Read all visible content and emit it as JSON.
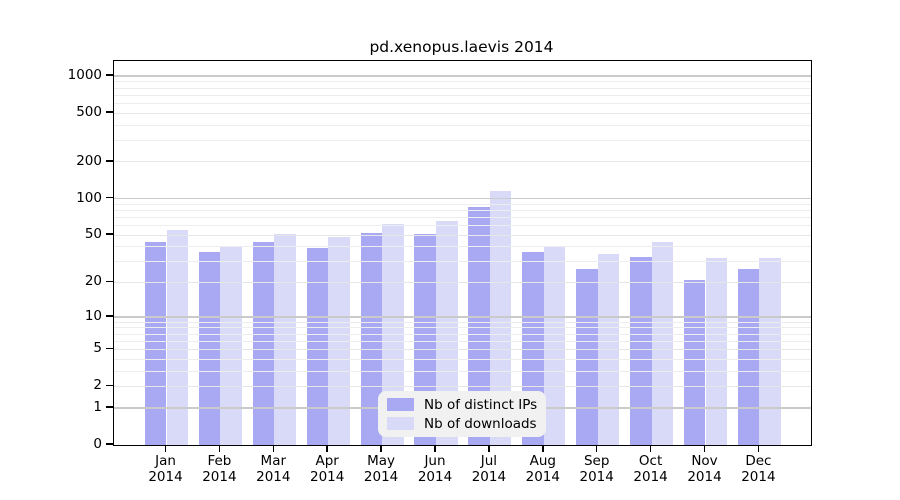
{
  "chart_data": {
    "type": "bar",
    "title": "pd.xenopus.laevis 2014",
    "categories": [
      "Jan",
      "Feb",
      "Mar",
      "Apr",
      "May",
      "Jun",
      "Jul",
      "Aug",
      "Sep",
      "Oct",
      "Nov",
      "Dec"
    ],
    "year_label": "2014",
    "series": [
      {
        "name": "Nb of distinct IPs",
        "color": "#a9a9f3",
        "values": [
          44,
          36,
          44,
          39,
          52,
          51,
          86,
          36,
          26,
          33,
          21,
          26
        ]
      },
      {
        "name": "Nb of downloads",
        "color": "#d9d9f8",
        "values": [
          55,
          40,
          51,
          48,
          62,
          65,
          115,
          40,
          35,
          44,
          32,
          32
        ]
      }
    ],
    "y_ticks": [
      1000,
      500,
      200,
      100,
      50,
      20,
      10,
      5,
      2,
      1,
      0
    ],
    "y_scale": "log10(value+1)",
    "ylim": [
      0,
      1400
    ],
    "grid": "horizontal",
    "legend": {
      "position": "bottom-center-inside",
      "items": [
        "Nb of distinct IPs",
        "Nb of downloads"
      ]
    }
  },
  "colors": {
    "background": "#ffffff",
    "frame": "#000000",
    "grid_decade": "#cacaca",
    "grid_labeled": "#e6e6e6",
    "grid_minor": "#ededed",
    "legend_bg": "#f1f1f1"
  }
}
